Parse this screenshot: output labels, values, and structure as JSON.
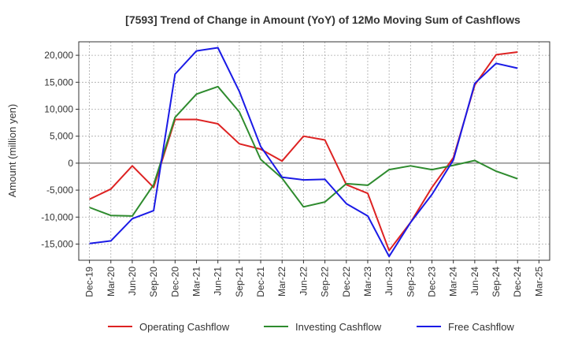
{
  "chart_data": {
    "type": "line",
    "title": "[7593]  Trend of Change in Amount (YoY) of 12Mo Moving Sum of Cashflows",
    "xlabel": "",
    "ylabel": "Amount (million yen)",
    "ylim": [
      -18000,
      22500
    ],
    "y_ticks": [
      -15000,
      -10000,
      -5000,
      0,
      5000,
      10000,
      15000,
      20000
    ],
    "y_tick_labels": [
      "-15,000",
      "-10,000",
      "-5,000",
      "0",
      "5,000",
      "10,000",
      "15,000",
      "20,000"
    ],
    "categories": [
      "Dec-19",
      "Mar-20",
      "Jun-20",
      "Sep-20",
      "Dec-20",
      "Mar-21",
      "Jun-21",
      "Sep-21",
      "Dec-21",
      "Mar-22",
      "Jun-22",
      "Sep-22",
      "Dec-22",
      "Mar-23",
      "Jun-23",
      "Sep-23",
      "Dec-23",
      "Mar-24",
      "Jun-24",
      "Sep-24",
      "Dec-24",
      "Mar-25"
    ],
    "grid": true,
    "legend_position": "bottom",
    "series": [
      {
        "name": "Operating Cashflow",
        "color": "#dd2222",
        "values": [
          -6700,
          -4800,
          -500,
          -4500,
          8100,
          8100,
          7300,
          3600,
          2600,
          400,
          5000,
          4300,
          -4000,
          -5600,
          -16200,
          -11000,
          -4500,
          1000,
          14500,
          20100,
          20600,
          null
        ]
      },
      {
        "name": "Investing Cashflow",
        "color": "#2e8b2e",
        "values": [
          -8200,
          -9700,
          -9800,
          -4000,
          8500,
          12800,
          14200,
          9500,
          700,
          -2800,
          -8100,
          -7200,
          -3800,
          -4100,
          -1200,
          -500,
          -1200,
          -400,
          500,
          -1500,
          -2900,
          null
        ]
      },
      {
        "name": "Free Cashflow",
        "color": "#1a1ae6",
        "values": [
          -14900,
          -14400,
          -10300,
          -8800,
          16500,
          20800,
          21400,
          13300,
          3100,
          -2600,
          -3100,
          -3000,
          -7500,
          -9800,
          -17300,
          -11000,
          -5800,
          600,
          14800,
          18500,
          17600,
          null
        ]
      }
    ]
  }
}
